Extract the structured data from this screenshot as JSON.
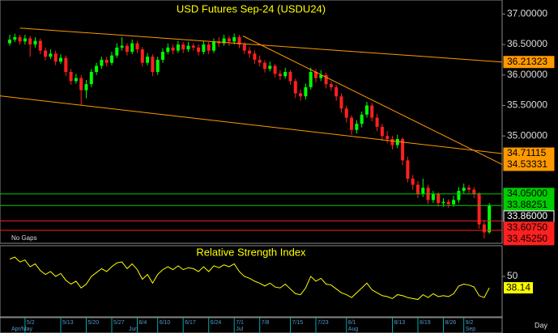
{
  "chart_data": [
    {
      "type": "candlestick",
      "title": "USD Futures Sep-24 (USDU24)",
      "annotations": [
        "No Gaps"
      ],
      "xlabel": "Day",
      "categories": [
        null,
        null,
        null,
        "5/2",
        null,
        null,
        null,
        null,
        null,
        null,
        "5/13",
        null,
        null,
        null,
        null,
        "5/20",
        null,
        null,
        null,
        null,
        "5/27",
        null,
        null,
        null,
        null,
        "6/4",
        null,
        null,
        null,
        "6/10",
        null,
        null,
        null,
        null,
        "6/17",
        null,
        null,
        null,
        null,
        "6/24",
        null,
        null,
        null,
        null,
        "7/1",
        null,
        null,
        null,
        null,
        "7/8",
        null,
        null,
        null,
        null,
        null,
        "7/15",
        null,
        null,
        null,
        null,
        "7/23",
        null,
        null,
        null,
        null,
        null,
        "8/1",
        null,
        null,
        null,
        null,
        null,
        null,
        null,
        null,
        "8/13",
        null,
        null,
        null,
        null,
        "8/19",
        null,
        null,
        null,
        null,
        "8/26",
        null,
        null,
        null,
        "9/2",
        null,
        null,
        null,
        null,
        null
      ],
      "months": [
        {
          "value": 0,
          "label": "Apr/May"
        },
        {
          "value": 23,
          "label": "Jun"
        },
        {
          "value": 44,
          "label": "Jul"
        },
        {
          "value": 66,
          "label": "Aug"
        },
        {
          "value": 89,
          "label": "Sep"
        }
      ],
      "up_color": "#00ff00",
      "down_color": "#ff2020",
      "candles": [
        [
          36.52,
          36.66,
          36.48,
          36.58
        ],
        [
          36.58,
          36.68,
          36.54,
          36.62
        ],
        [
          36.62,
          36.66,
          36.5,
          36.55
        ],
        [
          36.55,
          36.66,
          36.5,
          36.6
        ],
        [
          36.6,
          36.64,
          36.3,
          36.5
        ],
        [
          36.5,
          36.62,
          36.45,
          36.56
        ],
        [
          36.56,
          36.6,
          36.34,
          36.4
        ],
        [
          36.4,
          36.45,
          36.24,
          36.3
        ],
        [
          36.3,
          36.42,
          36.26,
          36.35
        ],
        [
          36.35,
          36.4,
          36.16,
          36.22
        ],
        [
          36.22,
          36.34,
          36.18,
          36.28
        ],
        [
          36.28,
          36.32,
          35.98,
          36.05
        ],
        [
          36.05,
          36.1,
          35.84,
          35.9
        ],
        [
          35.9,
          36.02,
          35.86,
          35.95
        ],
        [
          35.95,
          36.0,
          35.5,
          35.75
        ],
        [
          35.75,
          35.92,
          35.62,
          35.85
        ],
        [
          35.85,
          36.1,
          35.8,
          36.05
        ],
        [
          36.05,
          36.2,
          36.0,
          36.15
        ],
        [
          36.15,
          36.3,
          36.1,
          36.25
        ],
        [
          36.25,
          36.3,
          36.14,
          36.2
        ],
        [
          36.2,
          36.38,
          36.16,
          36.32
        ],
        [
          36.32,
          36.52,
          36.28,
          36.45
        ],
        [
          36.45,
          36.62,
          36.4,
          36.48
        ],
        [
          36.48,
          36.52,
          36.32,
          36.38
        ],
        [
          36.38,
          36.58,
          36.34,
          36.52
        ],
        [
          36.52,
          36.56,
          36.36,
          36.42
        ],
        [
          36.42,
          36.46,
          36.14,
          36.2
        ],
        [
          36.2,
          36.36,
          36.16,
          36.3
        ],
        [
          36.3,
          36.34,
          35.98,
          36.05
        ],
        [
          36.05,
          36.3,
          36.0,
          36.25
        ],
        [
          36.25,
          36.44,
          36.2,
          36.38
        ],
        [
          36.38,
          36.52,
          36.34,
          36.45
        ],
        [
          36.45,
          36.5,
          36.34,
          36.4
        ],
        [
          36.4,
          36.56,
          36.36,
          36.5
        ],
        [
          36.5,
          36.54,
          36.36,
          36.42
        ],
        [
          36.42,
          36.54,
          36.38,
          36.48
        ],
        [
          36.48,
          36.52,
          36.4,
          36.45
        ],
        [
          36.45,
          36.5,
          36.32,
          36.38
        ],
        [
          36.38,
          36.56,
          36.34,
          36.5
        ],
        [
          36.5,
          36.54,
          36.34,
          36.4
        ],
        [
          36.4,
          36.6,
          36.36,
          36.55
        ],
        [
          36.55,
          36.62,
          36.46,
          36.52
        ],
        [
          36.52,
          36.66,
          36.48,
          36.6
        ],
        [
          36.6,
          36.64,
          36.48,
          36.55
        ],
        [
          36.55,
          36.68,
          36.5,
          36.62
        ],
        [
          36.62,
          36.66,
          36.44,
          36.5
        ],
        [
          36.5,
          36.54,
          36.34,
          36.4
        ],
        [
          36.4,
          36.46,
          36.28,
          36.35
        ],
        [
          36.35,
          36.4,
          36.18,
          36.25
        ],
        [
          36.25,
          36.32,
          36.14,
          36.2
        ],
        [
          36.2,
          36.24,
          36.04,
          36.1
        ],
        [
          36.1,
          36.22,
          36.06,
          36.15
        ],
        [
          36.15,
          36.18,
          35.96,
          36.02
        ],
        [
          36.02,
          36.08,
          35.92,
          35.98
        ],
        [
          35.98,
          36.12,
          35.94,
          36.05
        ],
        [
          36.05,
          36.08,
          35.84,
          35.9
        ],
        [
          35.9,
          35.94,
          35.62,
          35.7
        ],
        [
          35.7,
          35.76,
          35.58,
          35.65
        ],
        [
          35.65,
          35.86,
          35.6,
          35.8
        ],
        [
          35.8,
          36.12,
          35.76,
          36.05
        ],
        [
          36.05,
          36.1,
          35.88,
          35.95
        ],
        [
          35.95,
          36.08,
          35.9,
          36.0
        ],
        [
          36.0,
          36.04,
          35.78,
          35.85
        ],
        [
          35.85,
          35.9,
          35.74,
          35.8
        ],
        [
          35.8,
          35.84,
          35.58,
          35.65
        ],
        [
          35.65,
          35.7,
          35.38,
          35.45
        ],
        [
          35.45,
          35.5,
          35.22,
          35.3
        ],
        [
          35.3,
          35.34,
          35.02,
          35.1
        ],
        [
          35.1,
          35.26,
          35.04,
          35.2
        ],
        [
          35.2,
          35.4,
          35.14,
          35.35
        ],
        [
          35.35,
          35.56,
          35.3,
          35.5
        ],
        [
          35.5,
          35.54,
          35.24,
          35.3
        ],
        [
          35.3,
          35.36,
          35.08,
          35.15
        ],
        [
          35.15,
          35.2,
          34.92,
          35.0
        ],
        [
          35.0,
          35.08,
          34.88,
          34.95
        ],
        [
          34.95,
          35.0,
          34.78,
          34.85
        ],
        [
          34.85,
          35.02,
          34.8,
          34.95
        ],
        [
          34.95,
          34.98,
          34.52,
          34.6
        ],
        [
          34.6,
          34.66,
          34.24,
          34.3
        ],
        [
          34.3,
          34.36,
          34.12,
          34.2
        ],
        [
          34.2,
          34.26,
          33.98,
          34.05
        ],
        [
          34.05,
          34.3,
          34.0,
          34.15
        ],
        [
          34.15,
          34.2,
          33.88,
          33.95
        ],
        [
          33.95,
          34.1,
          33.9,
          34.05
        ],
        [
          34.05,
          34.08,
          33.84,
          33.9
        ],
        [
          33.9,
          33.98,
          33.84,
          33.92
        ],
        [
          33.92,
          33.96,
          33.82,
          33.88
        ],
        [
          33.88,
          34.02,
          33.84,
          33.95
        ],
        [
          33.95,
          34.16,
          33.9,
          34.1
        ],
        [
          34.1,
          34.22,
          34.06,
          34.15
        ],
        [
          34.15,
          34.2,
          34.06,
          34.12
        ],
        [
          34.12,
          34.16,
          33.98,
          34.05
        ],
        [
          34.05,
          34.08,
          33.48,
          33.55
        ],
        [
          33.55,
          33.62,
          33.32,
          33.42
        ],
        [
          33.42,
          33.9,
          33.4,
          33.86
        ]
      ],
      "ylim": [
        33.24,
        37.23
      ],
      "yticks": [
        {
          "value": 37,
          "label": "37.00000"
        },
        {
          "value": 36.5,
          "label": "36.50000"
        },
        {
          "value": 36,
          "label": "36.00000"
        },
        {
          "value": 35.5,
          "label": "35.50000"
        },
        {
          "value": 35,
          "label": "35.00000"
        }
      ],
      "trendlines": [
        {
          "points": [
            [
              2,
              36.77
            ],
            [
              96.5,
              36.21323
            ]
          ],
          "label": "36.21323",
          "color": "#ff9900"
        },
        {
          "points": [
            [
              -1.9,
              35.657
            ],
            [
              96.5,
              34.71115
            ]
          ],
          "label": "34.71115",
          "color": "#ff9900"
        },
        {
          "points": [
            [
              45.7,
              36.64
            ],
            [
              96.5,
              34.53331
            ]
          ],
          "label": "34.53331",
          "color": "#ff9900"
        }
      ],
      "levels": [
        {
          "value": 34.05,
          "label": "34.05000",
          "color": "#00cc00",
          "line": true
        },
        {
          "value": 33.88251,
          "label": "33.88251",
          "color": "#00cc00",
          "line": false
        },
        {
          "value": 33.86,
          "label": "33.86000",
          "color": "#000000",
          "line": true,
          "line_color": "#00cc00"
        },
        {
          "value": 33.6075,
          "label": "33.60750",
          "color": "#ff2020",
          "line": true
        },
        {
          "value": 33.4525,
          "label": "33.45250",
          "color": "#ff2020",
          "line": true
        }
      ]
    },
    {
      "type": "line",
      "title": "Relative Strength Index",
      "color": "#ffff00",
      "ylim": [
        8,
        81
      ],
      "yticks": [
        50
      ],
      "last_label": "38.14",
      "values": [
        68,
        70,
        65,
        67,
        60,
        63,
        56,
        52,
        55,
        50,
        53,
        46,
        42,
        45,
        38,
        42,
        50,
        54,
        58,
        55,
        60,
        64,
        65,
        58,
        63,
        57,
        47,
        52,
        43,
        52,
        57,
        60,
        57,
        61,
        57,
        59,
        58,
        55,
        60,
        55,
        61,
        59,
        62,
        60,
        63,
        55,
        50,
        48,
        45,
        43,
        40,
        43,
        39,
        38,
        42,
        37,
        32,
        31,
        38,
        50,
        45,
        48,
        42,
        41,
        37,
        33,
        31,
        28,
        33,
        38,
        43,
        36,
        33,
        30,
        29,
        27,
        31,
        30,
        28,
        27,
        26,
        31,
        28,
        32,
        29,
        30,
        29,
        32,
        40,
        42,
        41,
        39,
        30,
        28,
        38.14
      ]
    }
  ]
}
